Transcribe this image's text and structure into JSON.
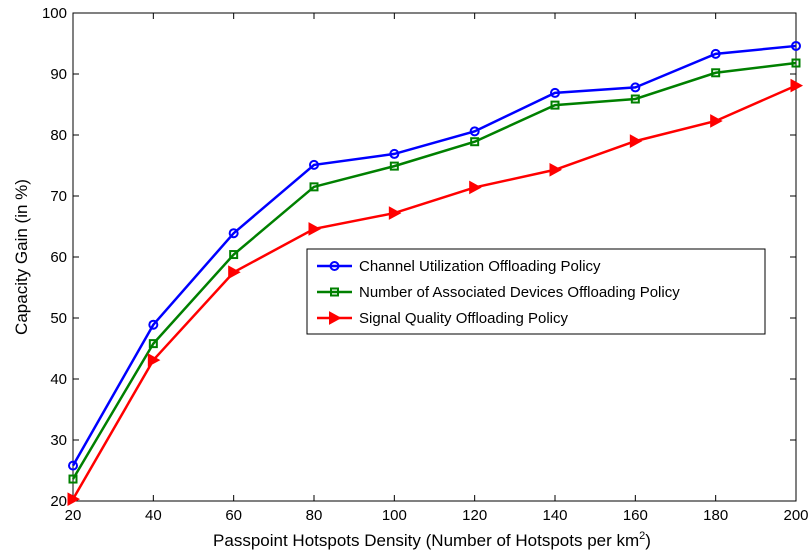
{
  "chart_data": {
    "type": "line",
    "title": "",
    "xlabel": "Passpoint Hotspots Density (Number of Hotspots per km",
    "xlabel_sup": "2",
    "xlabel_end": ")",
    "ylabel": "Capacity Gain (in %)",
    "x": [
      20,
      40,
      60,
      80,
      100,
      120,
      140,
      160,
      180,
      200
    ],
    "xlim": [
      20,
      200
    ],
    "ylim": [
      20,
      100
    ],
    "xticks": [
      "20",
      "40",
      "60",
      "80",
      "100",
      "120",
      "140",
      "160",
      "180",
      "200"
    ],
    "yticks": [
      "20",
      "30",
      "40",
      "50",
      "60",
      "70",
      "80",
      "90",
      "100"
    ],
    "grid": false,
    "legend_position": "center-right",
    "series": [
      {
        "name": "Channel Utilization Offloading Policy",
        "color": "#0000ff",
        "marker": "circle",
        "values": [
          25.8,
          48.9,
          63.9,
          75.1,
          76.9,
          80.6,
          86.9,
          87.8,
          93.3,
          94.6
        ]
      },
      {
        "name": "Number of Associated Devices Offloading Policy",
        "color": "#008000",
        "marker": "square",
        "values": [
          23.6,
          45.8,
          60.4,
          71.5,
          74.9,
          78.9,
          84.9,
          85.9,
          90.2,
          91.8
        ]
      },
      {
        "name": "Signal Quality Offloading Policy",
        "color": "#ff0000",
        "marker": "triangle-right",
        "values": [
          20.3,
          43.1,
          57.5,
          64.6,
          67.2,
          71.4,
          74.3,
          79.0,
          82.3,
          88.1
        ]
      }
    ]
  }
}
